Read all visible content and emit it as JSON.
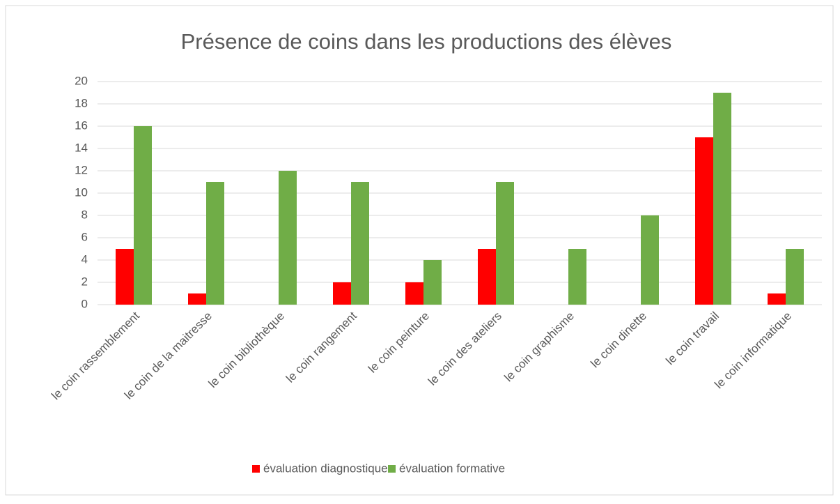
{
  "chart_data": {
    "type": "bar",
    "title": "Présence de coins dans les productions des élèves",
    "categories": [
      "le coin rassemblement",
      "le coin de la maitresse",
      "le coin bibliothèque",
      "le coin rangement",
      "le coin peinture",
      "le coin des ateliers",
      "le coin graphisme",
      "le coin dinette",
      "le coin travail",
      "le coin informatique"
    ],
    "series": [
      {
        "name": "évaluation diagnostique",
        "color": "#ff0000",
        "values": [
          5,
          1,
          0,
          2,
          2,
          5,
          0,
          0,
          15,
          1
        ]
      },
      {
        "name": "évaluation formative",
        "color": "#70ad47",
        "values": [
          16,
          11,
          12,
          11,
          4,
          11,
          5,
          8,
          19,
          5
        ]
      }
    ],
    "ylim": [
      0,
      20
    ],
    "yticks": [
      0,
      2,
      4,
      6,
      8,
      10,
      12,
      14,
      16,
      18,
      20
    ],
    "grid": true,
    "legend": "bottom"
  }
}
